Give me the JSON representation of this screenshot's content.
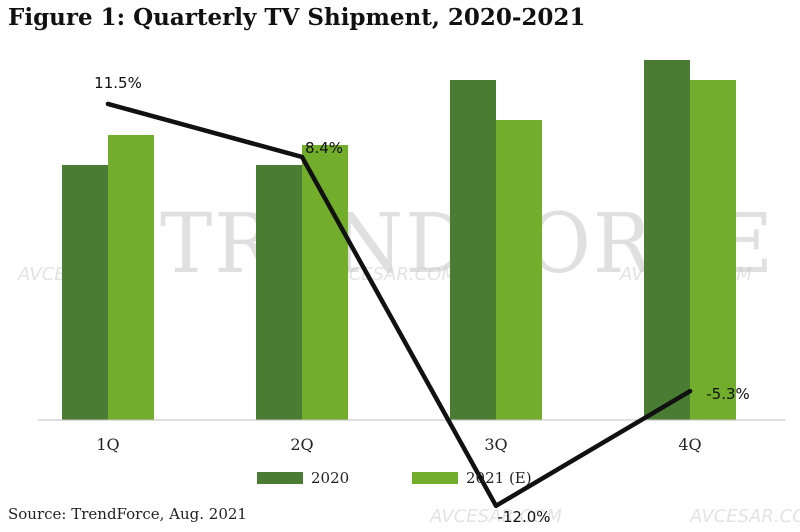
{
  "chart_data": {
    "type": "bar",
    "title": "Figure 1: Quarterly TV Shipment, 2020-2021",
    "categories": [
      "1Q",
      "2Q",
      "3Q",
      "4Q"
    ],
    "series": [
      {
        "name": "2020",
        "type": "bar",
        "values": [
          51,
          51,
          68,
          72
        ]
      },
      {
        "name": "2021 (E)",
        "type": "bar",
        "values": [
          57,
          55,
          60,
          68
        ]
      }
    ],
    "growth": {
      "type": "line",
      "values": [
        11.5,
        8.4,
        -12.0,
        -5.3
      ],
      "labels": [
        "11.5%",
        "8.4%",
        "-12.0%",
        "-5.3%"
      ]
    },
    "legend_position": "bottom",
    "grid": false,
    "colors": {
      "2020": "#4a7d33",
      "2021 (E)": "#72ad2b",
      "growth": "#111111"
    }
  },
  "watermark": {
    "text": "TRENDFORCE",
    "site": "AVCESAR.COM"
  },
  "source": "Source: TrendForce, Aug. 2021"
}
